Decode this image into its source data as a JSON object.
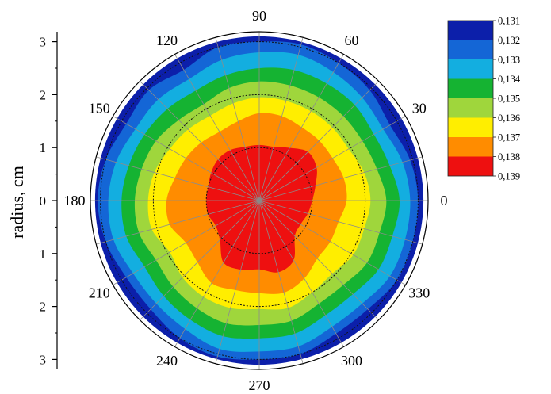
{
  "chart_data": {
    "type": "polar contour",
    "ylabel": "radius, cm",
    "radial_axis": {
      "min": 0,
      "max": 3.1,
      "ticks": [
        3,
        2,
        1,
        0,
        1,
        2,
        3
      ],
      "tick_labels": [
        "3",
        "2",
        "1",
        "0",
        "1",
        "2",
        "3"
      ],
      "dotted_circles_at": [
        1,
        2,
        3
      ]
    },
    "angular_axis": {
      "unit": "degrees",
      "label_values": [
        0,
        30,
        60,
        90,
        120,
        150,
        180,
        210,
        240,
        270,
        300,
        330
      ],
      "labels": [
        "0",
        "30",
        "60",
        "90",
        "120",
        "150",
        "180",
        "210",
        "240",
        "270",
        "300",
        "330"
      ],
      "spoke_step_deg": 15
    },
    "legend": {
      "placement": "top-right",
      "boundaries": [
        "0,131",
        "0,132",
        "0,133",
        "0,134",
        "0,135",
        "0,136",
        "0,137",
        "0,138",
        "0,139"
      ],
      "colors": [
        "#0c1faa",
        "#1466d6",
        "#13aee0",
        "#15b332",
        "#9fd63c",
        "#ffee00",
        "#ff8c00",
        "#ee1010"
      ]
    },
    "contours": [
      {
        "level_range": [
          "0,131",
          "0,132"
        ],
        "color": "#0c1faa",
        "angles_deg": [
          0,
          15,
          30,
          45,
          60,
          75,
          90,
          105,
          120,
          135,
          150,
          165,
          180,
          195,
          210,
          225,
          240,
          255,
          270,
          285,
          300,
          315,
          330,
          345
        ],
        "radius_cm": [
          3.1,
          3.1,
          3.1,
          3.1,
          3.1,
          3.1,
          3.1,
          3.1,
          3.1,
          3.1,
          3.1,
          3.1,
          3.1,
          3.1,
          3.1,
          3.1,
          3.1,
          3.1,
          3.1,
          3.1,
          3.1,
          3.1,
          3.1,
          3.1
        ]
      },
      {
        "level_range": [
          "0,132",
          "0,133"
        ],
        "color": "#1466d6",
        "angles_deg": [
          0,
          15,
          30,
          45,
          60,
          75,
          90,
          105,
          120,
          135,
          150,
          165,
          180,
          195,
          210,
          225,
          240,
          255,
          270,
          285,
          300,
          315,
          330,
          345
        ],
        "radius_cm": [
          3.0,
          2.95,
          2.85,
          2.95,
          3.0,
          3.05,
          3.0,
          3.0,
          2.85,
          2.95,
          2.9,
          3.0,
          3.05,
          3.0,
          2.9,
          2.9,
          3.0,
          3.05,
          3.0,
          3.0,
          2.9,
          2.9,
          3.0,
          3.0
        ]
      },
      {
        "level_range": [
          "0,133",
          "0,134"
        ],
        "color": "#13aee0",
        "angles_deg": [
          0,
          15,
          30,
          45,
          60,
          75,
          90,
          105,
          120,
          135,
          150,
          165,
          180,
          195,
          210,
          225,
          240,
          255,
          270,
          285,
          300,
          315,
          330,
          345
        ],
        "radius_cm": [
          2.85,
          2.8,
          2.7,
          2.75,
          2.8,
          2.85,
          2.8,
          2.75,
          2.65,
          2.7,
          2.7,
          2.8,
          2.85,
          2.85,
          2.75,
          2.75,
          2.8,
          2.9,
          2.85,
          2.85,
          2.75,
          2.75,
          2.85,
          2.85
        ]
      },
      {
        "level_range": [
          "0,134",
          "0,135"
        ],
        "color": "#15b332",
        "angles_deg": [
          0,
          15,
          30,
          45,
          60,
          75,
          90,
          105,
          120,
          135,
          150,
          165,
          180,
          195,
          210,
          225,
          240,
          255,
          270,
          285,
          300,
          315,
          330,
          345
        ],
        "radius_cm": [
          2.65,
          2.55,
          2.5,
          2.55,
          2.55,
          2.55,
          2.5,
          2.45,
          2.4,
          2.45,
          2.5,
          2.55,
          2.6,
          2.6,
          2.5,
          2.55,
          2.6,
          2.65,
          2.6,
          2.6,
          2.5,
          2.5,
          2.6,
          2.6
        ]
      },
      {
        "level_range": [
          "0,135",
          "0,136"
        ],
        "color": "#9fd63c",
        "angles_deg": [
          0,
          15,
          30,
          45,
          60,
          75,
          90,
          105,
          120,
          135,
          150,
          165,
          180,
          195,
          210,
          225,
          240,
          255,
          270,
          285,
          300,
          315,
          330,
          345
        ],
        "radius_cm": [
          2.4,
          2.3,
          2.25,
          2.25,
          2.25,
          2.25,
          2.25,
          2.2,
          2.1,
          2.15,
          2.25,
          2.3,
          2.35,
          2.35,
          2.25,
          2.3,
          2.35,
          2.4,
          2.35,
          2.35,
          2.25,
          2.25,
          2.35,
          2.35
        ]
      },
      {
        "level_range": [
          "0,136",
          "0,137"
        ],
        "color": "#ffee00",
        "angles_deg": [
          0,
          15,
          30,
          45,
          60,
          75,
          90,
          105,
          120,
          135,
          150,
          165,
          180,
          195,
          210,
          225,
          240,
          255,
          270,
          285,
          300,
          315,
          330,
          345
        ],
        "radius_cm": [
          2.1,
          2.05,
          1.95,
          1.95,
          1.95,
          1.95,
          1.95,
          1.9,
          1.85,
          1.9,
          1.95,
          2.05,
          2.1,
          2.1,
          1.95,
          2.05,
          2.1,
          2.1,
          2.05,
          2.1,
          2.0,
          1.95,
          2.05,
          2.05
        ]
      },
      {
        "level_range": [
          "0,137",
          "0,138"
        ],
        "color": "#ff8c00",
        "angles_deg": [
          0,
          15,
          30,
          45,
          60,
          75,
          90,
          105,
          120,
          135,
          150,
          165,
          180,
          195,
          210,
          225,
          240,
          255,
          270,
          285,
          300,
          315,
          330,
          345
        ],
        "radius_cm": [
          1.65,
          1.65,
          1.6,
          1.6,
          1.6,
          1.65,
          1.65,
          1.55,
          1.5,
          1.55,
          1.6,
          1.65,
          1.75,
          1.75,
          1.6,
          1.65,
          1.8,
          1.75,
          1.75,
          1.8,
          1.7,
          1.55,
          1.55,
          1.55
        ]
      },
      {
        "level_range": [
          "0,138",
          "0,139"
        ],
        "color": "#ee1010",
        "angles_deg": [
          0,
          15,
          30,
          45,
          60,
          75,
          90,
          105,
          120,
          135,
          150,
          165,
          180,
          195,
          210,
          225,
          240,
          255,
          270,
          285,
          300,
          315,
          330,
          345
        ],
        "radius_cm": [
          1.0,
          1.1,
          1.25,
          1.3,
          1.15,
          1.05,
          1.05,
          1.05,
          1.1,
          1.1,
          1.05,
          1.0,
          1.0,
          1.0,
          0.95,
          1.05,
          1.35,
          1.35,
          1.3,
          1.4,
          1.3,
          0.95,
          0.9,
          0.95
        ]
      }
    ]
  }
}
